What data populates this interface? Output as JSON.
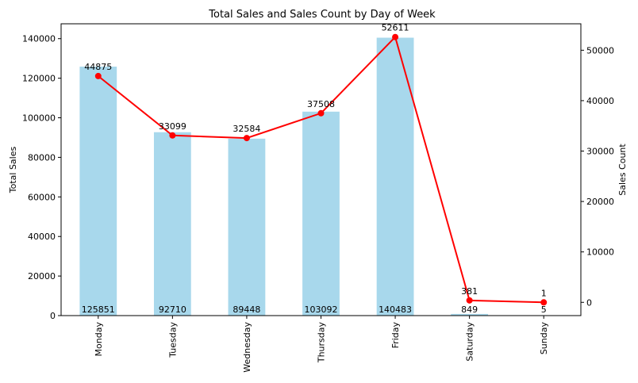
{
  "chart_data": {
    "type": "bar",
    "title": "Total Sales and Sales Count by Day of Week",
    "ylabel": "Total Sales",
    "y2label": "Sales Count",
    "categories": [
      "Monday",
      "Tuesday",
      "Wednesday",
      "Thursday",
      "Friday",
      "Saturday",
      "Sunday"
    ],
    "series": [
      {
        "name": "Total Sales",
        "type": "bar",
        "axis": "left",
        "color": "#a8d8ec",
        "values": [
          125851,
          92710,
          89448,
          103092,
          140483,
          849,
          5
        ]
      },
      {
        "name": "Sales Count",
        "type": "line",
        "axis": "right",
        "color": "#ff0000",
        "values": [
          44875,
          33099,
          32584,
          37508,
          52611,
          381,
          1
        ]
      }
    ],
    "ylim": [
      0,
      147510
    ],
    "y2lim": [
      -2630,
      55242
    ],
    "yticks": [
      0,
      20000,
      40000,
      60000,
      80000,
      100000,
      120000,
      140000
    ],
    "y2ticks": [
      0,
      10000,
      20000,
      30000,
      40000,
      50000
    ],
    "grid": false
  }
}
